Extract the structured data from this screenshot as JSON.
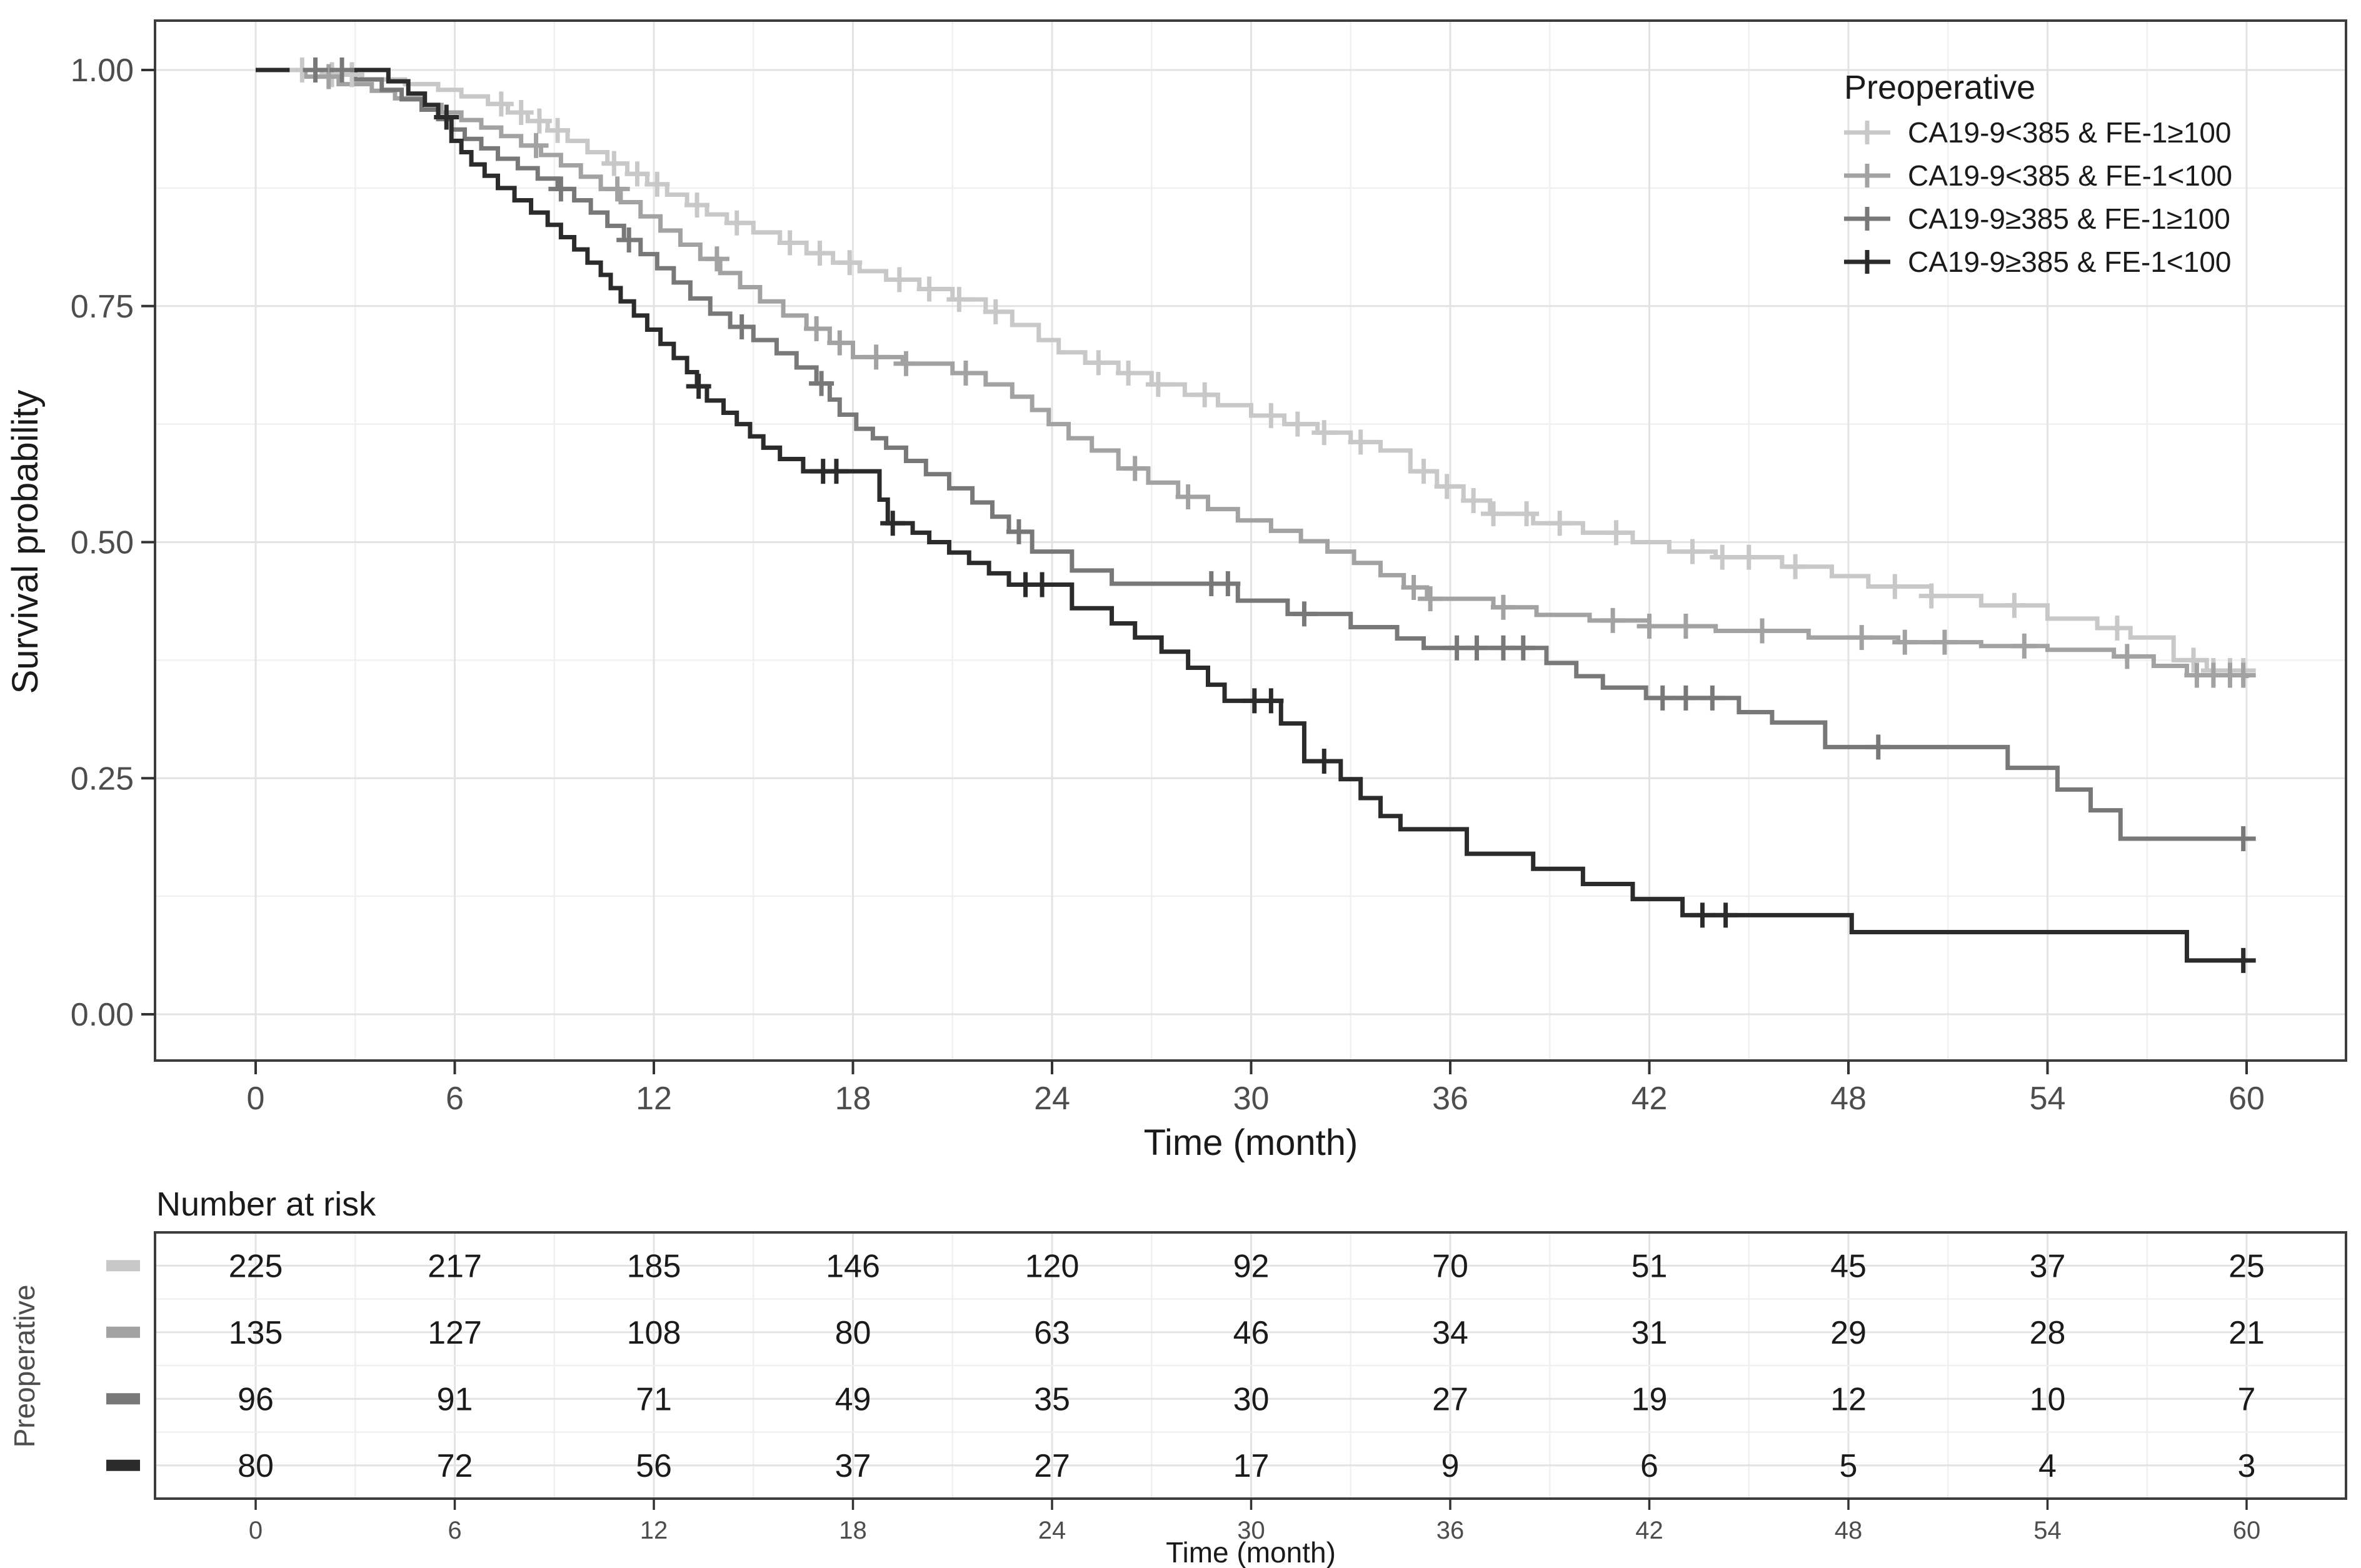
{
  "chart_data": {
    "type": "line",
    "subtype": "kaplan_meier_step",
    "title": "",
    "xlabel": "Time (month)",
    "ylabel": "Survival probability",
    "xlim": [
      0,
      60
    ],
    "ylim": [
      0,
      1
    ],
    "grid": true,
    "x_ticks": [
      0,
      6,
      12,
      18,
      24,
      30,
      36,
      42,
      48,
      54,
      60
    ],
    "x_minor_ticks": [
      3,
      9,
      15,
      21,
      27,
      33,
      39,
      45,
      51,
      57
    ],
    "y_ticks": [
      {
        "value": 1.0,
        "label": "1.00"
      },
      {
        "value": 0.75,
        "label": "0.75"
      },
      {
        "value": 0.5,
        "label": "0.50"
      },
      {
        "value": 0.25,
        "label": "0.25"
      },
      {
        "value": 0.0,
        "label": "0.00"
      }
    ],
    "y_minor_ticks": [
      0.875,
      0.625,
      0.375,
      0.125
    ],
    "legend": {
      "title": "Preoperative",
      "position": "top-right",
      "items": [
        {
          "label": "CA19-9<385 & FE-1≥100"
        },
        {
          "label": "CA19-9<385 & FE-1<100"
        },
        {
          "label": "CA19-9≥385 & FE-1≥100"
        },
        {
          "label": "CA19-9≥385 & FE-1<100"
        }
      ]
    },
    "series": [
      {
        "name": "CA19-9<385 & FE-1≥100",
        "color": "#c8c8c8",
        "steps": [
          [
            0,
            1.0
          ],
          [
            2.0,
            0.995
          ],
          [
            3.2,
            0.99
          ],
          [
            4.5,
            0.985
          ],
          [
            5.5,
            0.979
          ],
          [
            6.2,
            0.972
          ],
          [
            7.0,
            0.964
          ],
          [
            7.6,
            0.955
          ],
          [
            8.2,
            0.946
          ],
          [
            8.8,
            0.936
          ],
          [
            9.4,
            0.925
          ],
          [
            10.0,
            0.913
          ],
          [
            10.6,
            0.901
          ],
          [
            11.2,
            0.89
          ],
          [
            11.8,
            0.879
          ],
          [
            12.4,
            0.868
          ],
          [
            13.0,
            0.857
          ],
          [
            13.6,
            0.847
          ],
          [
            14.2,
            0.838
          ],
          [
            15.0,
            0.828
          ],
          [
            15.8,
            0.817
          ],
          [
            16.6,
            0.806
          ],
          [
            17.4,
            0.796
          ],
          [
            18.2,
            0.787
          ],
          [
            19.0,
            0.778
          ],
          [
            20.0,
            0.768
          ],
          [
            21.0,
            0.757
          ],
          [
            22.0,
            0.744
          ],
          [
            22.8,
            0.73
          ],
          [
            23.6,
            0.714
          ],
          [
            24.2,
            0.701
          ],
          [
            25.0,
            0.69
          ],
          [
            26.0,
            0.679
          ],
          [
            27.0,
            0.667
          ],
          [
            28.0,
            0.656
          ],
          [
            29.0,
            0.645
          ],
          [
            30.0,
            0.634
          ],
          [
            31.0,
            0.625
          ],
          [
            32.0,
            0.616
          ],
          [
            33.0,
            0.606
          ],
          [
            33.9,
            0.597
          ],
          [
            34.8,
            0.575
          ],
          [
            35.6,
            0.559
          ],
          [
            36.4,
            0.544
          ],
          [
            37.2,
            0.53
          ],
          [
            38.5,
            0.52
          ],
          [
            40.0,
            0.51
          ],
          [
            41.5,
            0.5
          ],
          [
            42.6,
            0.49
          ],
          [
            44.0,
            0.484
          ],
          [
            46.0,
            0.474
          ],
          [
            47.5,
            0.464
          ],
          [
            48.6,
            0.453
          ],
          [
            50.5,
            0.443
          ],
          [
            52.0,
            0.433
          ],
          [
            54.0,
            0.419
          ],
          [
            55.5,
            0.409
          ],
          [
            56.5,
            0.399
          ],
          [
            57.8,
            0.375
          ],
          [
            58.8,
            0.364
          ],
          [
            60,
            0.364
          ]
        ],
        "censor_times": [
          1.4,
          2.3,
          2.9,
          7.4,
          8.0,
          8.55,
          9.1,
          10.8,
          11.5,
          12.1,
          13.3,
          14.5,
          16.1,
          17.0,
          17.9,
          19.4,
          20.3,
          21.2,
          22.3,
          25.4,
          26.3,
          27.2,
          28.6,
          30.6,
          31.4,
          32.2,
          33.3,
          35.2,
          35.9,
          36.7,
          37.3,
          38.3,
          39.3,
          41.0,
          43.3,
          44.2,
          45.0,
          46.4,
          49.4,
          50.5,
          53.0,
          56.1,
          58.4,
          59.0,
          59.5,
          59.9
        ]
      },
      {
        "name": "CA19-9<385 & FE-1<100",
        "color": "#a2a2a2",
        "steps": [
          [
            0,
            1.0
          ],
          [
            1.5,
            0.993
          ],
          [
            2.5,
            0.985
          ],
          [
            3.5,
            0.978
          ],
          [
            4.2,
            0.97
          ],
          [
            5.0,
            0.963
          ],
          [
            5.6,
            0.955
          ],
          [
            6.2,
            0.947
          ],
          [
            6.8,
            0.939
          ],
          [
            7.4,
            0.93
          ],
          [
            8.0,
            0.92
          ],
          [
            8.6,
            0.91
          ],
          [
            9.2,
            0.899
          ],
          [
            9.8,
            0.887
          ],
          [
            10.4,
            0.874
          ],
          [
            11.0,
            0.86
          ],
          [
            11.6,
            0.845
          ],
          [
            12.2,
            0.83
          ],
          [
            12.8,
            0.815
          ],
          [
            13.4,
            0.8
          ],
          [
            14.0,
            0.785
          ],
          [
            14.6,
            0.77
          ],
          [
            15.2,
            0.755
          ],
          [
            15.9,
            0.74
          ],
          [
            16.6,
            0.726
          ],
          [
            17.3,
            0.711
          ],
          [
            18.0,
            0.696
          ],
          [
            19.5,
            0.689
          ],
          [
            21.0,
            0.679
          ],
          [
            22.0,
            0.667
          ],
          [
            22.8,
            0.654
          ],
          [
            23.4,
            0.64
          ],
          [
            23.9,
            0.625
          ],
          [
            24.5,
            0.61
          ],
          [
            25.2,
            0.597
          ],
          [
            26.0,
            0.578
          ],
          [
            26.9,
            0.563
          ],
          [
            27.8,
            0.548
          ],
          [
            28.7,
            0.535
          ],
          [
            29.6,
            0.523
          ],
          [
            30.6,
            0.512
          ],
          [
            31.5,
            0.501
          ],
          [
            32.3,
            0.49
          ],
          [
            33.1,
            0.478
          ],
          [
            33.9,
            0.465
          ],
          [
            34.6,
            0.452
          ],
          [
            35.3,
            0.44
          ],
          [
            37.3,
            0.431
          ],
          [
            38.6,
            0.423
          ],
          [
            40.2,
            0.417
          ],
          [
            42.0,
            0.411
          ],
          [
            44.0,
            0.406
          ],
          [
            46.8,
            0.399
          ],
          [
            49.5,
            0.394
          ],
          [
            52.0,
            0.39
          ],
          [
            54.0,
            0.386
          ],
          [
            56.0,
            0.379
          ],
          [
            57.2,
            0.369
          ],
          [
            58.2,
            0.359
          ],
          [
            60,
            0.356
          ]
        ],
        "censor_times": [
          2.2,
          8.45,
          10.9,
          13.9,
          16.9,
          17.6,
          18.7,
          19.6,
          21.4,
          26.5,
          28.1,
          34.9,
          35.4,
          37.6,
          40.9,
          42.0,
          43.1,
          45.4,
          48.4,
          49.7,
          50.9,
          53.3,
          56.4,
          58.5,
          59.0,
          59.5,
          59.9
        ]
      },
      {
        "name": "CA19-9≥385 & FE-1≥100",
        "color": "#787878",
        "steps": [
          [
            0,
            1.0
          ],
          [
            3.0,
            0.99
          ],
          [
            3.8,
            0.979
          ],
          [
            4.4,
            0.969
          ],
          [
            5.0,
            0.958
          ],
          [
            5.5,
            0.948
          ],
          [
            5.9,
            0.937
          ],
          [
            6.3,
            0.927
          ],
          [
            6.8,
            0.917
          ],
          [
            7.3,
            0.906
          ],
          [
            7.9,
            0.896
          ],
          [
            8.5,
            0.885
          ],
          [
            9.1,
            0.874
          ],
          [
            9.6,
            0.862
          ],
          [
            10.1,
            0.849
          ],
          [
            10.6,
            0.835
          ],
          [
            11.1,
            0.82
          ],
          [
            11.6,
            0.805
          ],
          [
            12.1,
            0.79
          ],
          [
            12.6,
            0.775
          ],
          [
            13.1,
            0.758
          ],
          [
            13.7,
            0.742
          ],
          [
            14.3,
            0.728
          ],
          [
            15.0,
            0.714
          ],
          [
            15.7,
            0.7
          ],
          [
            16.3,
            0.685
          ],
          [
            16.9,
            0.668
          ],
          [
            17.3,
            0.651
          ],
          [
            17.6,
            0.635
          ],
          [
            18.1,
            0.62
          ],
          [
            18.6,
            0.61
          ],
          [
            19.0,
            0.6
          ],
          [
            19.6,
            0.586
          ],
          [
            20.2,
            0.572
          ],
          [
            20.9,
            0.557
          ],
          [
            21.6,
            0.542
          ],
          [
            22.2,
            0.527
          ],
          [
            22.7,
            0.511
          ],
          [
            23.4,
            0.49
          ],
          [
            24.6,
            0.47
          ],
          [
            25.8,
            0.456
          ],
          [
            29.6,
            0.438
          ],
          [
            31.1,
            0.424
          ],
          [
            33.0,
            0.41
          ],
          [
            34.4,
            0.398
          ],
          [
            35.2,
            0.388
          ],
          [
            38.9,
            0.372
          ],
          [
            39.8,
            0.358
          ],
          [
            40.6,
            0.346
          ],
          [
            41.9,
            0.335
          ],
          [
            44.7,
            0.32
          ],
          [
            45.7,
            0.309
          ],
          [
            47.3,
            0.283
          ],
          [
            52.8,
            0.261
          ],
          [
            54.3,
            0.238
          ],
          [
            55.3,
            0.216
          ],
          [
            56.2,
            0.186
          ],
          [
            60,
            0.186
          ]
        ],
        "censor_times": [
          1.8,
          2.6,
          9.2,
          11.25,
          14.65,
          17.05,
          23.0,
          28.8,
          29.3,
          31.6,
          36.2,
          36.8,
          37.6,
          38.2,
          42.4,
          43.1,
          43.9,
          48.9,
          59.9
        ]
      },
      {
        "name": "CA19-9≥385 & FE-1<100",
        "color": "#2b2b2b",
        "steps": [
          [
            0,
            1.0
          ],
          [
            4.0,
            0.988
          ],
          [
            4.6,
            0.975
          ],
          [
            5.1,
            0.963
          ],
          [
            5.5,
            0.95
          ],
          [
            5.9,
            0.925
          ],
          [
            6.2,
            0.913
          ],
          [
            6.5,
            0.9
          ],
          [
            6.9,
            0.888
          ],
          [
            7.3,
            0.875
          ],
          [
            7.8,
            0.862
          ],
          [
            8.3,
            0.849
          ],
          [
            8.8,
            0.836
          ],
          [
            9.2,
            0.823
          ],
          [
            9.6,
            0.81
          ],
          [
            10.0,
            0.796
          ],
          [
            10.4,
            0.783
          ],
          [
            10.7,
            0.769
          ],
          [
            11.0,
            0.755
          ],
          [
            11.4,
            0.74
          ],
          [
            11.8,
            0.725
          ],
          [
            12.2,
            0.71
          ],
          [
            12.6,
            0.695
          ],
          [
            13.0,
            0.68
          ],
          [
            13.3,
            0.665
          ],
          [
            13.6,
            0.65
          ],
          [
            14.1,
            0.637
          ],
          [
            14.5,
            0.625
          ],
          [
            14.9,
            0.612
          ],
          [
            15.3,
            0.6
          ],
          [
            15.8,
            0.588
          ],
          [
            16.5,
            0.575
          ],
          [
            18.8,
            0.545
          ],
          [
            19.05,
            0.52
          ],
          [
            19.8,
            0.51
          ],
          [
            20.3,
            0.5
          ],
          [
            20.9,
            0.489
          ],
          [
            21.5,
            0.478
          ],
          [
            22.1,
            0.467
          ],
          [
            22.7,
            0.455
          ],
          [
            24.6,
            0.43
          ],
          [
            25.8,
            0.414
          ],
          [
            26.5,
            0.399
          ],
          [
            27.3,
            0.384
          ],
          [
            28.1,
            0.367
          ],
          [
            28.7,
            0.349
          ],
          [
            29.2,
            0.332
          ],
          [
            30.9,
            0.308
          ],
          [
            31.6,
            0.268
          ],
          [
            32.7,
            0.249
          ],
          [
            33.3,
            0.229
          ],
          [
            33.9,
            0.21
          ],
          [
            34.5,
            0.196
          ],
          [
            36.5,
            0.17
          ],
          [
            38.5,
            0.154
          ],
          [
            40.0,
            0.138
          ],
          [
            41.5,
            0.122
          ],
          [
            43.0,
            0.105
          ],
          [
            48.1,
            0.087
          ],
          [
            58.2,
            0.057
          ],
          [
            60,
            0.057
          ]
        ],
        "censor_times": [
          5.75,
          13.35,
          17.1,
          17.5,
          19.2,
          23.2,
          23.7,
          30.1,
          30.6,
          32.2,
          43.6,
          44.3,
          59.9
        ]
      }
    ],
    "risk_table": {
      "title": "Number at risk",
      "axis_label": "Preoperative",
      "xlabel": "Time (month)",
      "times": [
        0,
        6,
        12,
        18,
        24,
        30,
        36,
        42,
        48,
        54,
        60
      ],
      "rows": [
        {
          "name": "CA19-9<385 & FE-1≥100",
          "color": "#c8c8c8",
          "counts": [
            225,
            217,
            185,
            146,
            120,
            92,
            70,
            51,
            45,
            37,
            25
          ]
        },
        {
          "name": "CA19-9<385 & FE-1<100",
          "color": "#a2a2a2",
          "counts": [
            135,
            127,
            108,
            80,
            63,
            46,
            34,
            31,
            29,
            28,
            21
          ]
        },
        {
          "name": "CA19-9≥385 & FE-1≥100",
          "color": "#787878",
          "counts": [
            96,
            91,
            71,
            49,
            35,
            30,
            27,
            19,
            12,
            10,
            7
          ]
        },
        {
          "name": "CA19-9≥385 & FE-1<100",
          "color": "#2b2b2b",
          "counts": [
            80,
            72,
            56,
            37,
            27,
            17,
            9,
            6,
            5,
            4,
            3
          ]
        }
      ]
    }
  }
}
